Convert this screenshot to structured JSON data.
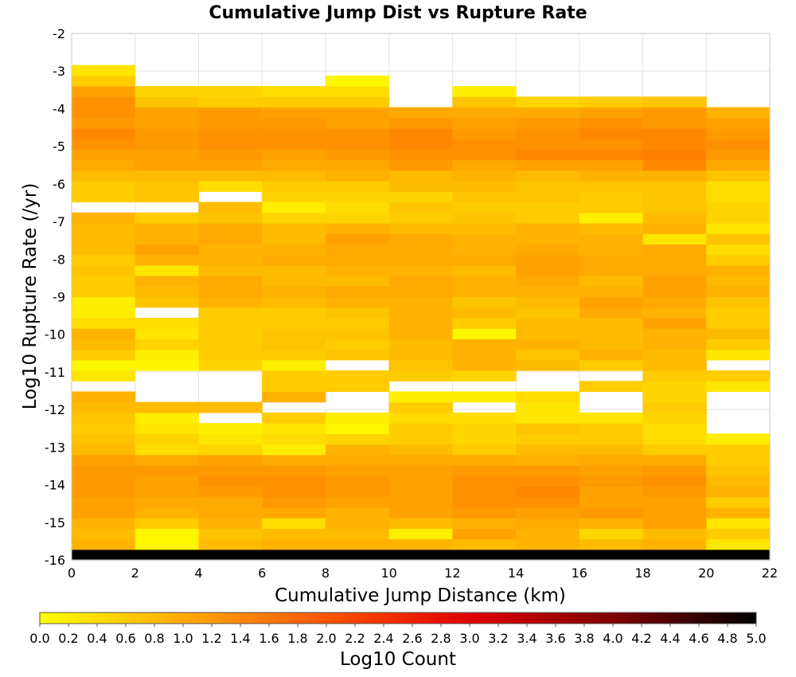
{
  "chart_data": {
    "type": "heatmap",
    "title": "Cumulative Jump Dist vs Rupture Rate",
    "xlabel": "Cumulative Jump Distance (km)",
    "ylabel": "Log10 Rupture Rate (/yr)",
    "xlim": [
      0,
      22
    ],
    "ylim": [
      -16,
      -2
    ],
    "x_bin_width": 2,
    "y_bin_height": 0.28,
    "x_ticks": [
      "0",
      "2",
      "4",
      "6",
      "8",
      "10",
      "12",
      "14",
      "16",
      "18",
      "20",
      "22"
    ],
    "y_ticks": [
      "-2",
      "-3",
      "-4",
      "-5",
      "-6",
      "-7",
      "-8",
      "-9",
      "-10",
      "-11",
      "-12",
      "-13",
      "-14",
      "-15",
      "-16"
    ],
    "grid": true,
    "colorbar": {
      "label": "Log10 Count",
      "range": [
        0,
        5
      ],
      "ticks": [
        "0.0",
        "0.2",
        "0.4",
        "0.6",
        "0.8",
        "1.0",
        "1.2",
        "1.4",
        "1.6",
        "1.8",
        "2.0",
        "2.2",
        "2.4",
        "2.6",
        "2.8",
        "3.0",
        "3.2",
        "3.4",
        "3.6",
        "3.8",
        "4.0",
        "4.2",
        "4.4",
        "4.6",
        "4.8",
        "5.0"
      ],
      "colors": [
        "#ffff00",
        "#ffaa00",
        "#ff5500",
        "#e00000",
        "#800000",
        "#000000"
      ],
      "placement": "bottom"
    },
    "y_bin_bottoms": [
      -16.0,
      -15.72,
      -15.44,
      -15.16,
      -14.88,
      -14.6,
      -14.32,
      -14.04,
      -13.76,
      -13.48,
      -13.2,
      -12.92,
      -12.64,
      -12.36,
      -12.08,
      -11.8,
      -11.52,
      -11.24,
      -10.96,
      -10.68,
      -10.4,
      -10.12,
      -9.84,
      -9.56,
      -9.28,
      -9.0,
      -8.72,
      -8.44,
      -8.16,
      -7.88,
      -7.6,
      -7.32,
      -7.04,
      -6.76,
      -6.48,
      -6.2,
      -5.92,
      -5.64,
      -5.36,
      -5.08,
      -4.8,
      -4.52,
      -4.24,
      -3.96,
      -3.68,
      -3.4,
      -3.12
    ],
    "z": [
      [
        5.0,
        5.0,
        5.0,
        5.0,
        5.0,
        5.0,
        5.0,
        5.0,
        5.0,
        5.0,
        5.0
      ],
      [
        0.9,
        0.1,
        0.8,
        0.9,
        0.9,
        0.9,
        0.8,
        0.9,
        0.8,
        0.9,
        0.3
      ],
      [
        0.8,
        0.1,
        0.7,
        0.8,
        0.8,
        0.2,
        1.1,
        0.9,
        0.5,
        0.8,
        0.6
      ],
      [
        0.9,
        0.6,
        0.9,
        0.4,
        0.9,
        0.8,
        0.9,
        1.0,
        0.9,
        1.1,
        0.3
      ],
      [
        1.1,
        0.9,
        1.0,
        1.0,
        0.9,
        1.1,
        1.2,
        1.1,
        1.2,
        1.1,
        0.9
      ],
      [
        1.1,
        1.0,
        1.0,
        1.2,
        1.1,
        1.1,
        1.3,
        1.3,
        1.1,
        1.1,
        0.6
      ],
      [
        1.2,
        1.1,
        1.2,
        1.3,
        1.2,
        1.1,
        1.3,
        1.4,
        1.1,
        1.2,
        0.9
      ],
      [
        1.2,
        1.1,
        1.3,
        1.3,
        1.2,
        1.1,
        1.3,
        1.3,
        1.2,
        1.3,
        0.8
      ],
      [
        1.2,
        1.2,
        1.2,
        1.2,
        1.1,
        1.1,
        1.2,
        1.2,
        1.1,
        1.2,
        0.7
      ],
      [
        1.1,
        1.0,
        1.1,
        1.0,
        1.0,
        1.0,
        1.0,
        0.9,
        1.0,
        1.0,
        0.6
      ],
      [
        0.8,
        0.4,
        0.5,
        0.2,
        0.9,
        0.8,
        0.6,
        0.8,
        0.8,
        0.6,
        0.6
      ],
      [
        0.7,
        0.5,
        0.3,
        0.4,
        0.5,
        0.6,
        0.5,
        0.6,
        0.6,
        0.4,
        0.2
      ],
      [
        0.6,
        0.3,
        0.2,
        0.3,
        0.1,
        0.6,
        0.5,
        0.7,
        0.6,
        0.4,
        null
      ],
      [
        0.7,
        0.2,
        null,
        0.6,
        0.2,
        0.4,
        0.4,
        0.3,
        0.3,
        0.5,
        null
      ],
      [
        0.8,
        0.8,
        0.8,
        null,
        null,
        0.6,
        null,
        0.3,
        null,
        0.6,
        null
      ],
      [
        0.9,
        null,
        null,
        0.9,
        null,
        0.2,
        0.2,
        0.4,
        null,
        0.5,
        null
      ],
      [
        null,
        null,
        null,
        0.6,
        0.6,
        null,
        null,
        null,
        0.6,
        0.5,
        0.3
      ],
      [
        0.3,
        null,
        null,
        0.6,
        0.6,
        0.6,
        0.5,
        null,
        null,
        0.6,
        0.6
      ],
      [
        0.1,
        0.1,
        0.5,
        0.2,
        null,
        0.7,
        0.9,
        0.8,
        0.6,
        0.8,
        null
      ],
      [
        0.6,
        0.2,
        0.6,
        0.6,
        0.7,
        0.8,
        0.9,
        0.7,
        0.9,
        0.8,
        0.3
      ],
      [
        0.8,
        0.5,
        0.6,
        0.7,
        0.6,
        0.8,
        0.9,
        0.9,
        0.8,
        0.9,
        0.6
      ],
      [
        0.9,
        0.3,
        0.6,
        0.7,
        0.7,
        0.9,
        0.1,
        0.8,
        0.8,
        0.9,
        0.8
      ],
      [
        0.4,
        0.4,
        0.6,
        0.6,
        0.6,
        0.9,
        0.6,
        0.8,
        0.8,
        1.1,
        0.6
      ],
      [
        0.2,
        null,
        0.6,
        0.6,
        0.7,
        0.9,
        0.8,
        0.7,
        1.0,
        0.9,
        0.6
      ],
      [
        0.2,
        0.7,
        0.9,
        0.8,
        0.9,
        0.9,
        0.7,
        0.8,
        1.1,
        1.0,
        0.7
      ],
      [
        0.6,
        0.8,
        1.0,
        0.9,
        1.0,
        1.0,
        0.9,
        0.9,
        0.9,
        1.1,
        0.9
      ],
      [
        0.6,
        0.9,
        1.0,
        0.8,
        0.8,
        1.0,
        0.9,
        1.0,
        0.8,
        1.1,
        0.8
      ],
      [
        0.7,
        0.3,
        0.8,
        0.8,
        0.9,
        0.9,
        0.8,
        1.1,
        1.0,
        1.0,
        0.9
      ],
      [
        0.6,
        0.9,
        0.9,
        1.0,
        1.0,
        1.0,
        1.0,
        1.1,
        1.0,
        1.0,
        0.6
      ],
      [
        0.8,
        1.1,
        0.9,
        0.9,
        1.0,
        1.0,
        0.9,
        1.0,
        0.9,
        1.0,
        0.4
      ],
      [
        0.8,
        0.9,
        1.0,
        0.8,
        1.1,
        1.0,
        0.9,
        0.9,
        0.9,
        0.3,
        0.7
      ],
      [
        0.8,
        0.9,
        1.0,
        0.8,
        0.9,
        0.8,
        0.8,
        0.9,
        0.8,
        0.9,
        0.3
      ],
      [
        0.9,
        0.6,
        0.7,
        0.5,
        0.5,
        0.6,
        0.7,
        0.6,
        0.2,
        0.8,
        0.5
      ],
      [
        null,
        null,
        0.8,
        0.2,
        0.4,
        0.7,
        0.6,
        0.6,
        0.6,
        0.7,
        0.5
      ],
      [
        0.6,
        0.7,
        null,
        0.5,
        0.5,
        0.5,
        0.7,
        0.7,
        0.6,
        0.7,
        0.4
      ],
      [
        0.6,
        0.7,
        0.4,
        0.6,
        0.6,
        0.8,
        0.8,
        0.7,
        0.7,
        0.7,
        0.4
      ],
      [
        0.8,
        0.8,
        0.8,
        0.8,
        0.9,
        0.8,
        0.9,
        0.8,
        0.9,
        0.9,
        0.7
      ],
      [
        1.0,
        1.1,
        1.1,
        1.0,
        1.0,
        1.2,
        1.0,
        1.1,
        1.1,
        1.4,
        1.0
      ],
      [
        1.1,
        1.1,
        1.2,
        1.1,
        1.2,
        1.3,
        1.3,
        1.4,
        1.4,
        1.5,
        1.2
      ],
      [
        1.3,
        1.2,
        1.3,
        1.3,
        1.3,
        1.4,
        1.3,
        1.3,
        1.3,
        1.4,
        1.3
      ],
      [
        1.4,
        1.2,
        1.3,
        1.3,
        1.3,
        1.4,
        1.2,
        1.3,
        1.4,
        1.4,
        1.2
      ],
      [
        1.2,
        1.1,
        1.2,
        1.2,
        1.1,
        1.2,
        1.1,
        1.2,
        1.3,
        1.2,
        1.1
      ],
      [
        1.3,
        1.1,
        1.2,
        1.1,
        1.1,
        1.0,
        1.0,
        1.0,
        1.1,
        1.2,
        0.9
      ],
      [
        1.3,
        0.7,
        0.6,
        0.6,
        0.6,
        null,
        0.7,
        0.5,
        0.6,
        0.7,
        null
      ],
      [
        1.1,
        0.5,
        0.5,
        0.4,
        0.4,
        null,
        0.2,
        null,
        null,
        null,
        null
      ],
      [
        0.6,
        null,
        null,
        null,
        0.1,
        null,
        null,
        null,
        null,
        null,
        null
      ],
      [
        0.3,
        null,
        null,
        null,
        null,
        null,
        null,
        null,
        null,
        null,
        null
      ]
    ]
  }
}
